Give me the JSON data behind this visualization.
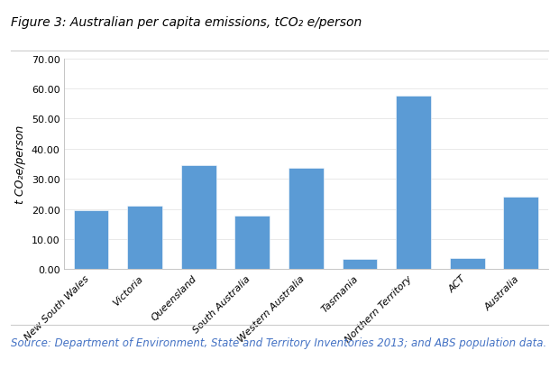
{
  "title": "Figure 3: Australian per capita emissions, tCO₂ e/person",
  "ylabel": "t CO₂e/person",
  "source": "Source: Department of Environment, State and Territory Inventories 2013; and ABS population data.",
  "categories": [
    "New South Wales",
    "Victoria",
    "Queensland",
    "South Australia",
    "Western Australia",
    "Tasmania",
    "Northern Territory",
    "ACT",
    "Australia"
  ],
  "values": [
    19.5,
    21.0,
    34.5,
    17.8,
    33.5,
    3.3,
    57.5,
    3.8,
    24.0
  ],
  "bar_color": "#5B9BD5",
  "ylim": [
    0,
    70.0
  ],
  "yticks": [
    0.0,
    10.0,
    20.0,
    30.0,
    40.0,
    50.0,
    60.0,
    70.0
  ],
  "ytick_labels": [
    "0.00",
    "10.00",
    "20.00",
    "30.00",
    "40.00",
    "50.00",
    "60.00",
    "70.00"
  ],
  "background_color": "#FFFFFF",
  "plot_bg_color": "#FFFFFF",
  "title_fontsize": 10,
  "ylabel_fontsize": 9,
  "tick_fontsize": 8,
  "source_fontsize": 8.5
}
